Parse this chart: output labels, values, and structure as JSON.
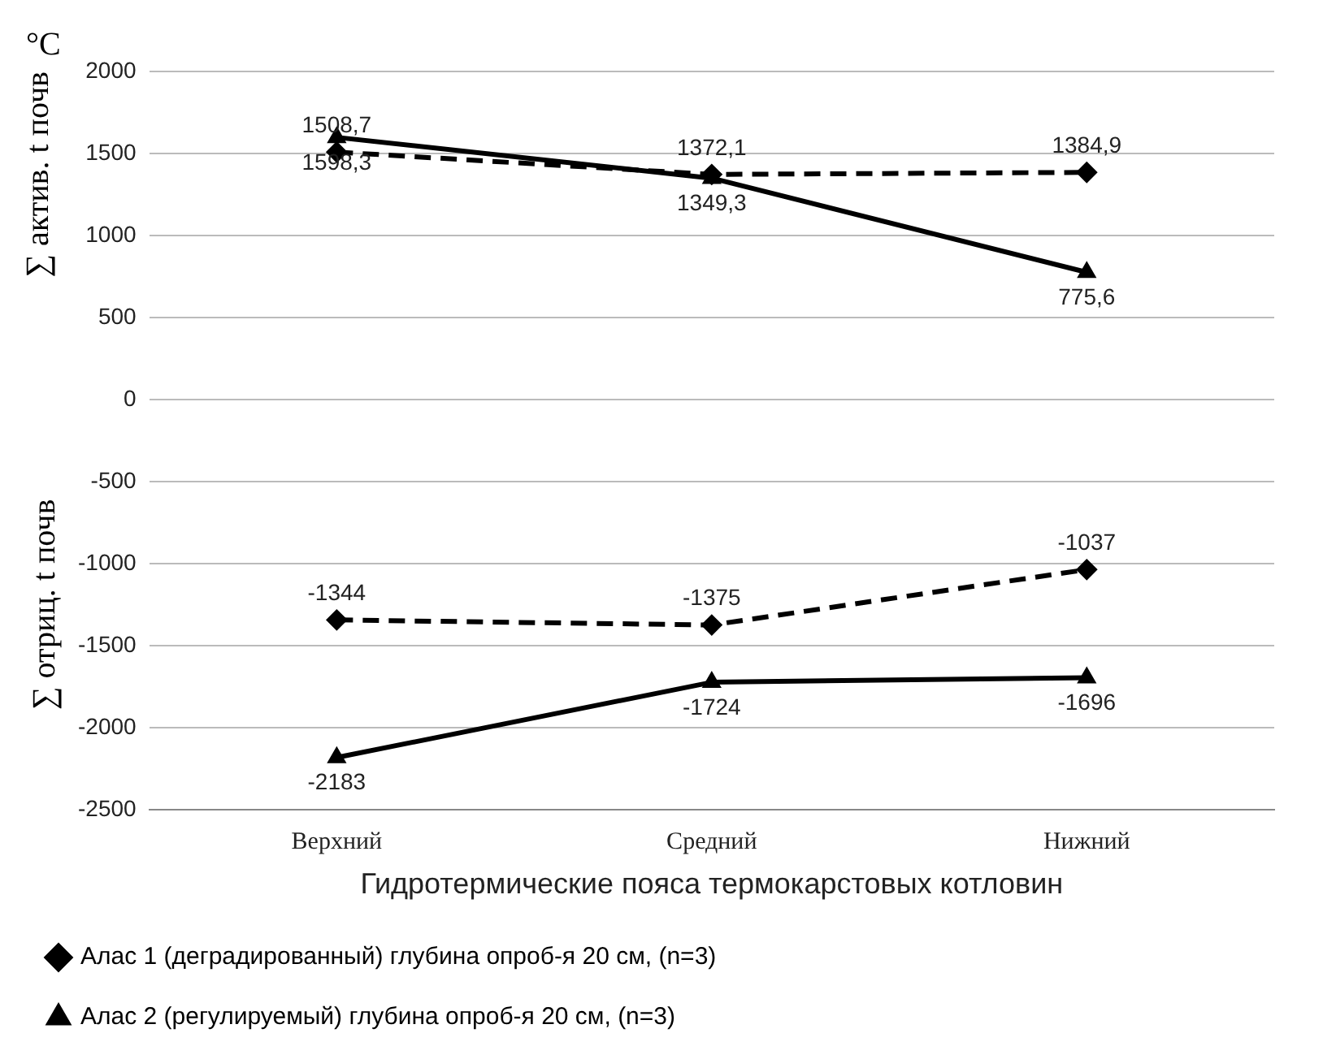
{
  "chart_data": {
    "type": "line",
    "categories": [
      "Верхний",
      "Средний",
      "Нижний"
    ],
    "xlabel": "Гидротермические пояса термокарстовых котловин",
    "ylabel": "∑ актив. t почв",
    "annotations": [
      "°C",
      "∑ отриц. t почв"
    ],
    "ylim": [
      -2500,
      2000
    ],
    "yticks": [
      -2500,
      -2000,
      -1500,
      -1000,
      -500,
      0,
      500,
      1000,
      1500,
      2000
    ],
    "grid": "y",
    "legend": "bottom",
    "series": [
      {
        "name": "Алас 1 (деградированный) глубина опроб-я 20 см, (n=3)",
        "color": "#000000",
        "line_style": "dashed",
        "marker": "diamond",
        "values": [
          1508.7,
          1372.1,
          1384.9
        ],
        "value_labels": [
          "1508,7",
          "1372,1",
          "1384,9"
        ]
      },
      {
        "name": "Алас 2 (регулируемый) глубина опроб-я 20 см, (n=3)",
        "color": "#000000",
        "line_style": "solid",
        "marker": "triangle",
        "values": [
          1598.3,
          1349.3,
          775.6
        ],
        "value_labels": [
          "1598,3",
          "1349,3",
          "775,6"
        ]
      },
      {
        "color": "#000000",
        "line_style": "dashed",
        "marker": "diamond",
        "values": [
          -1344,
          -1375,
          -1037
        ],
        "value_labels": [
          "-1344",
          "-1375",
          "-1037"
        ]
      },
      {
        "color": "#000000",
        "line_style": "solid",
        "marker": "triangle",
        "values": [
          -2183,
          -1724,
          -1696
        ],
        "value_labels": [
          "-2183",
          "-1724",
          "-1696"
        ]
      }
    ]
  }
}
